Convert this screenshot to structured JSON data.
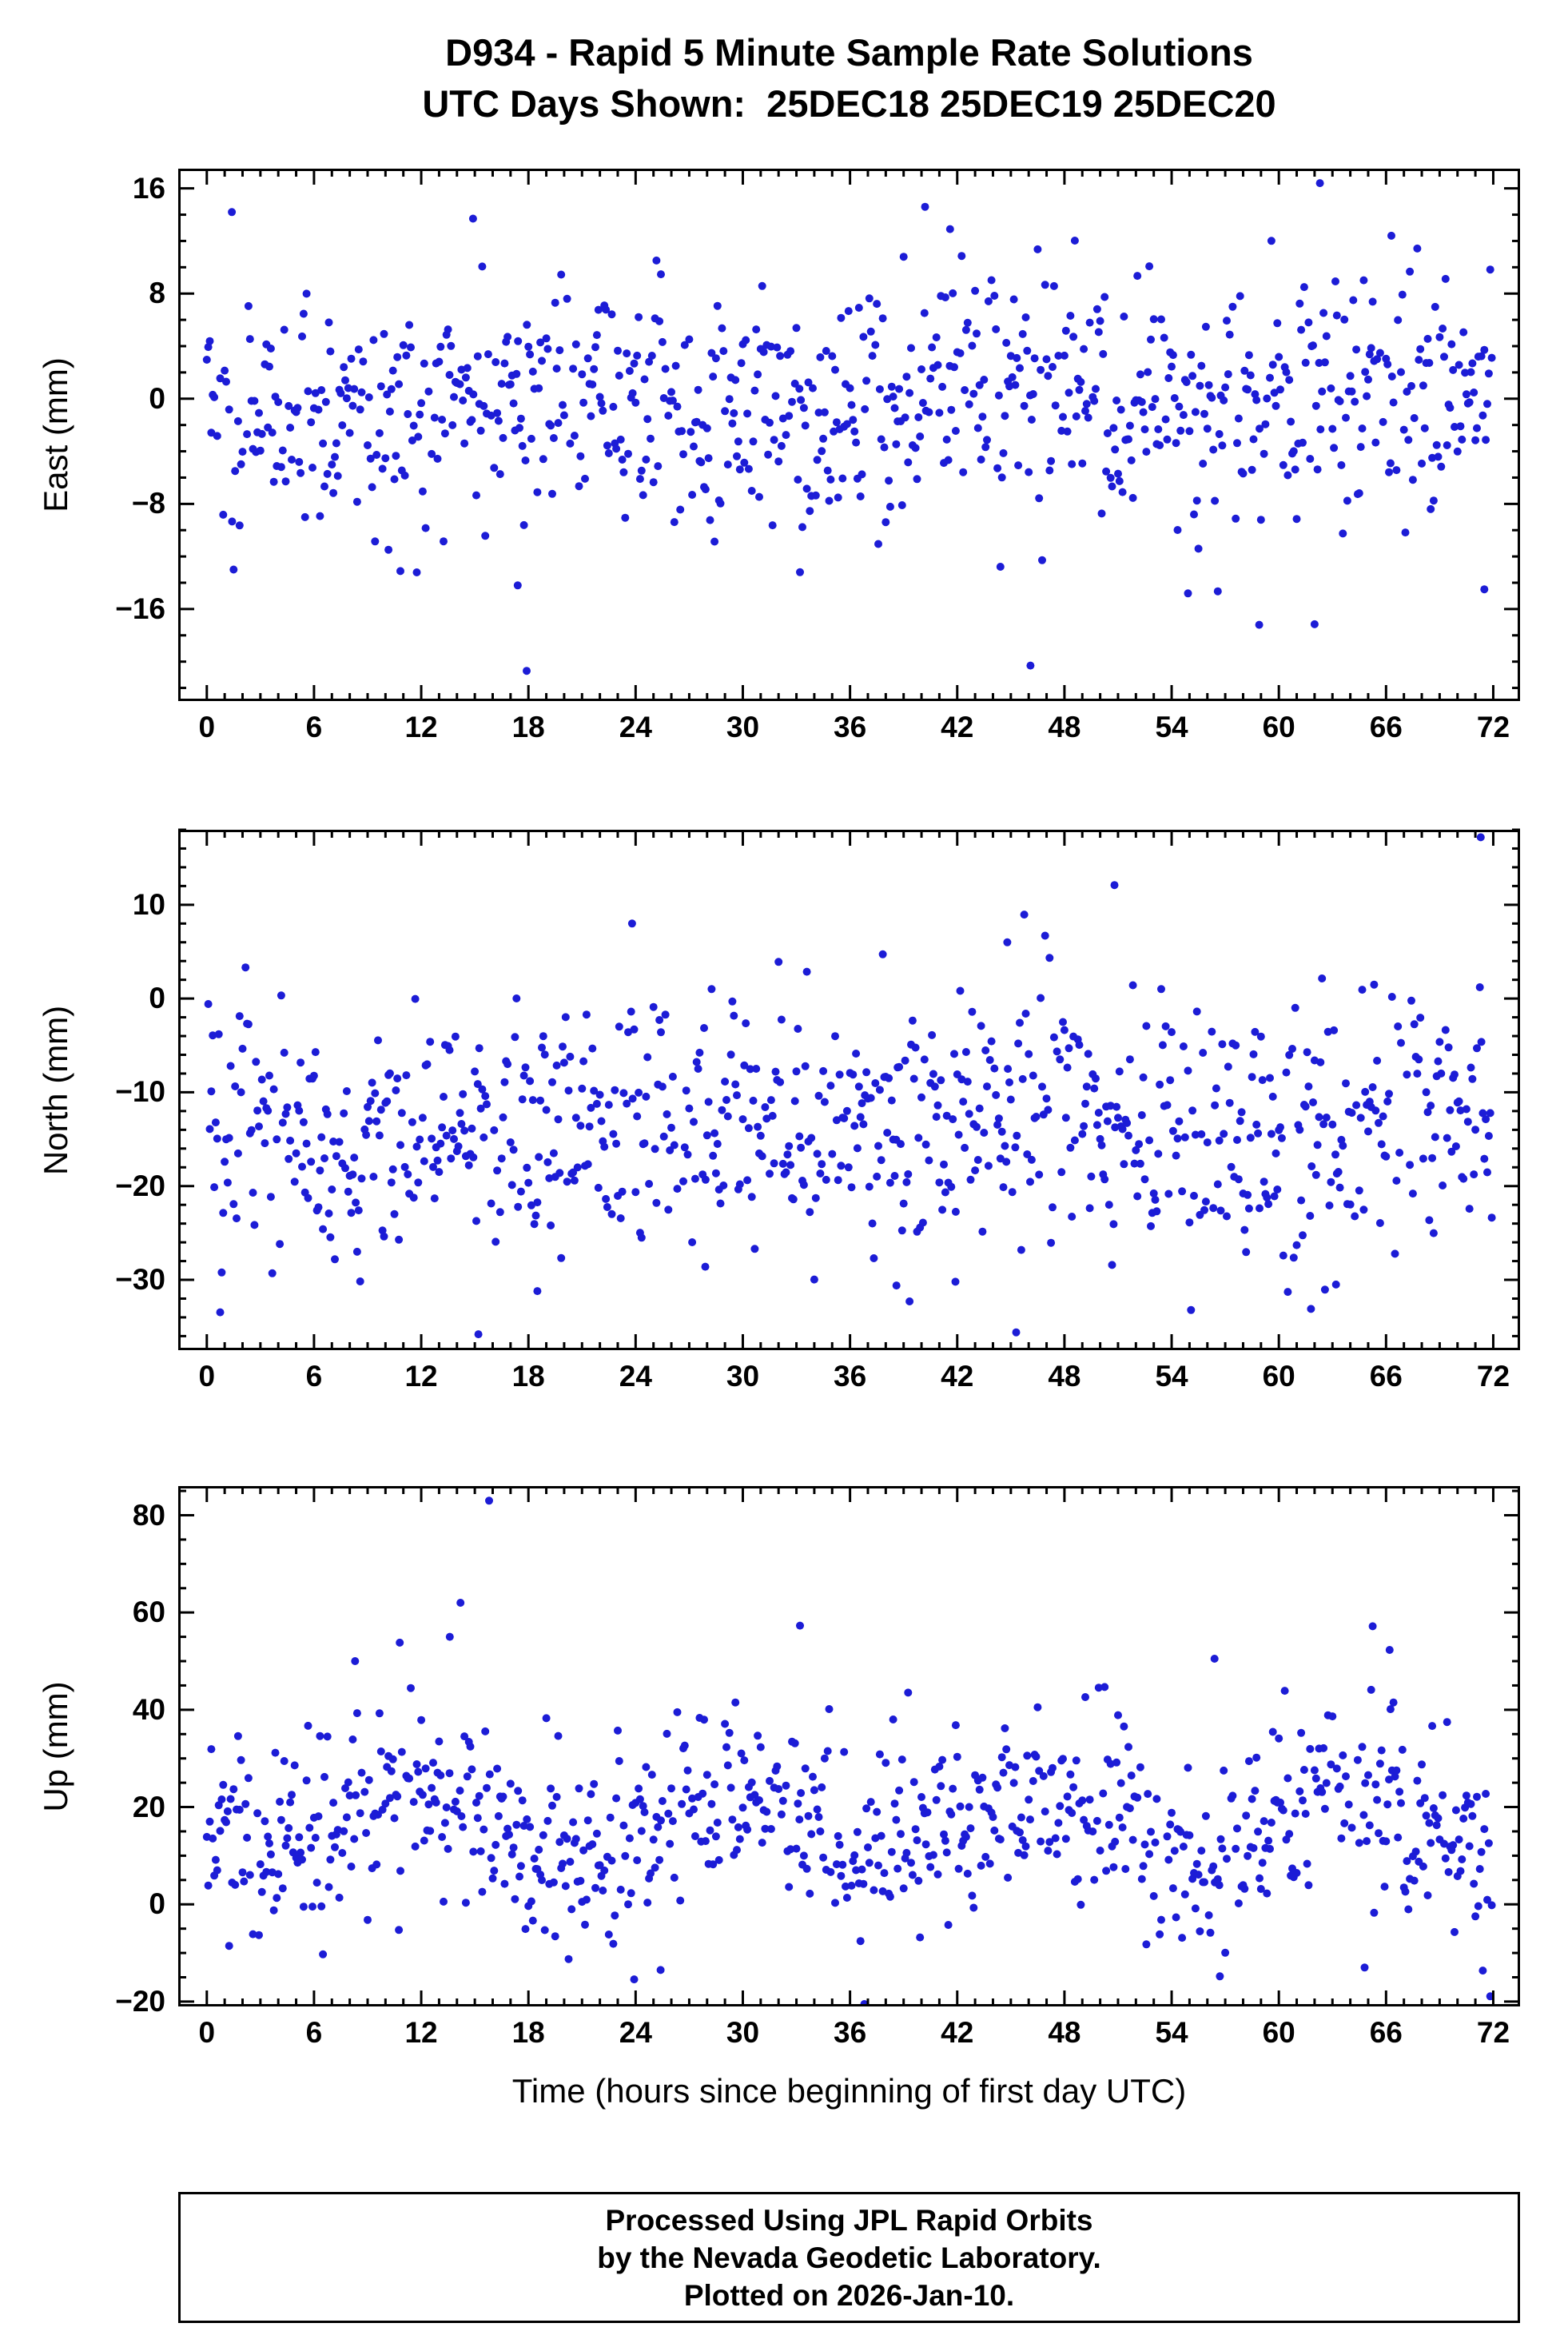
{
  "footer": {
    "lines": [
      "Processed Using JPL Rapid Orbits",
      "by the Nevada Geodetic Laboratory.",
      "Plotted on 2026-Jan-10."
    ]
  },
  "chart_data": {
    "type": "scatter",
    "title": "D934 - Rapid 5 Minute Sample Rate Solutions",
    "subtitle": "UTC Days Shown:  25DEC18 25DEC19 25DEC20",
    "xlabel": "Time (hours since beginning of first day UTC)",
    "x": {
      "min": -1.6,
      "max": 73.5,
      "data_min": 0,
      "data_max": 72,
      "major_ticks": [
        0,
        6,
        12,
        18,
        24,
        30,
        36,
        42,
        48,
        54,
        60,
        66,
        72
      ],
      "minor_step": 1
    },
    "marker": {
      "shape": "circle",
      "color": "#1c1cd6",
      "radius": 5
    },
    "sample_rate_minutes": 5,
    "panels": [
      {
        "id": "east",
        "ylabel": "East (mm)",
        "ymin": -23,
        "ymax": 17.5,
        "major_ticks": [
          16,
          8,
          0,
          -8,
          -16
        ],
        "minor_step": 2,
        "n": 864,
        "gap_frac": 0.09,
        "mean": -0.4,
        "std": 4.7,
        "wave_amp": 1.2,
        "wave_period": 24,
        "seed": 1934,
        "outliers": [
          [
            17.9,
            -20.7
          ],
          [
            46.1,
            -20.3
          ],
          [
            62.3,
            16.4
          ],
          [
            40.2,
            14.6
          ],
          [
            14.9,
            13.7
          ],
          [
            1.4,
            14.2
          ],
          [
            41.6,
            12.9
          ],
          [
            58.9,
            -17.2
          ],
          [
            66.3,
            12.4
          ],
          [
            71.5,
            -14.5
          ],
          [
            17.4,
            -14.2
          ],
          [
            33.2,
            -13.2
          ]
        ]
      },
      {
        "id": "north",
        "ylabel": "North (mm)",
        "ymin": -37.5,
        "ymax": 18,
        "major_ticks": [
          10,
          0,
          -10,
          -20,
          -30
        ],
        "minor_step": 2,
        "n": 864,
        "gap_frac": 0.09,
        "mean": -13.5,
        "std": 6.8,
        "wave_amp": 1.6,
        "wave_period": 24,
        "seed": 7712,
        "outliers": [
          [
            71.3,
            17.2
          ],
          [
            50.8,
            12.1
          ],
          [
            23.8,
            8.0
          ],
          [
            44.8,
            6.0
          ],
          [
            15.2,
            -35.8
          ],
          [
            45.3,
            -35.6
          ],
          [
            18.5,
            -31.2
          ],
          [
            38.6,
            -30.6
          ],
          [
            61.8,
            -33.1
          ],
          [
            63.2,
            -30.5
          ],
          [
            41.9,
            -30.2
          ],
          [
            27.9,
            -28.6
          ]
        ]
      },
      {
        "id": "up",
        "ylabel": "Up (mm)",
        "ymin": -21,
        "ymax": 86,
        "major_ticks": [
          80,
          60,
          40,
          20,
          0,
          -20
        ],
        "minor_step": 5,
        "n": 864,
        "gap_frac": 0.09,
        "mean": 16.5,
        "std": 10.5,
        "wave_amp": 5.5,
        "wave_period": 17,
        "seed": 4242,
        "outliers": [
          [
            15.8,
            83.0
          ],
          [
            14.2,
            62.0
          ],
          [
            33.2,
            57.3
          ],
          [
            10.8,
            53.8
          ],
          [
            8.3,
            50.0
          ],
          [
            66.2,
            52.3
          ],
          [
            13.6,
            55.0
          ],
          [
            56.4,
            50.5
          ],
          [
            36.8,
            -20.5
          ],
          [
            56.7,
            -14.8
          ],
          [
            25.4,
            -13.5
          ],
          [
            64.8,
            -13.0
          ]
        ]
      }
    ]
  }
}
